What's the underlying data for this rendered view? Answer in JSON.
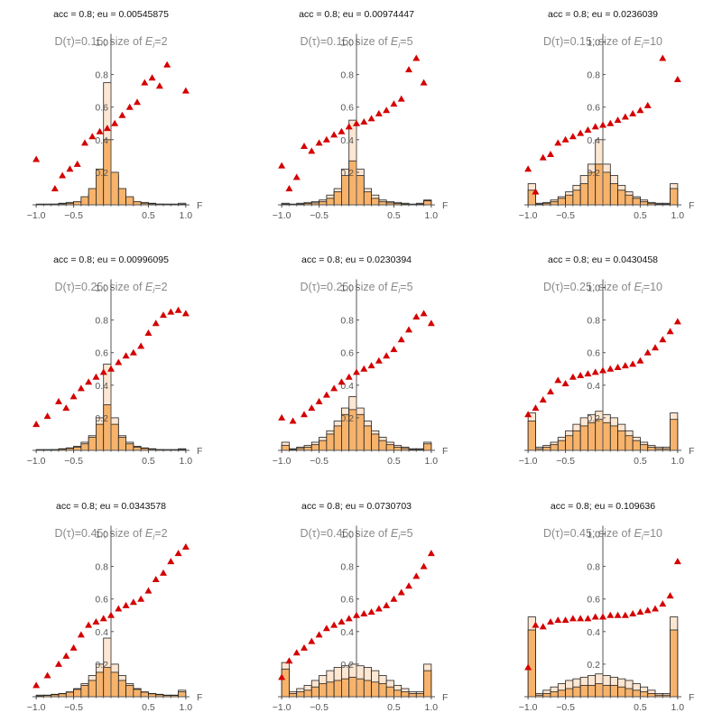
{
  "colors": {
    "light_bar": "#fde6d2",
    "dark_bar": "#f7b36b",
    "points": "#d40000",
    "axis": "#555555"
  },
  "chart_data": [
    {
      "type": "bar+scatter",
      "header": "acc = 0.8; eu = 0.00545875",
      "title_prefix": "D(τ)=0.15; size of ",
      "title_var": "E",
      "title_sub": "i",
      "title_suffix": "=2",
      "xlabel": "F",
      "xlim": [
        -1.05,
        1.05
      ],
      "ylim": [
        0,
        1.05
      ],
      "x_ticks": [
        "-1.0",
        "-0.5",
        "0.5",
        "1.0"
      ],
      "y_ticks": [
        "0.2",
        "0.4",
        "0.6",
        "0.8",
        "1.0"
      ],
      "bins": [
        -0.9,
        -0.8,
        -0.7,
        -0.6,
        -0.5,
        -0.4,
        -0.3,
        -0.2,
        -0.1,
        0.0,
        0.1,
        0.2,
        0.3,
        0.4,
        0.5,
        0.6,
        0.7,
        0.8,
        0.9,
        1.0
      ],
      "light": [
        0.005,
        0.005,
        0.005,
        0.01,
        0.015,
        0.02,
        0.04,
        0.07,
        0.18,
        0.75,
        0.18,
        0.07,
        0.04,
        0.02,
        0.015,
        0.01,
        0.005,
        0.005,
        0.005,
        0.01
      ],
      "dark": [
        0.002,
        0.002,
        0.004,
        0.006,
        0.01,
        0.02,
        0.05,
        0.1,
        0.22,
        0.4,
        0.2,
        0.1,
        0.05,
        0.02,
        0.01,
        0.006,
        0.004,
        0.002,
        0.002,
        0.004
      ],
      "points": {
        "x": [
          -1.0,
          -0.75,
          -0.65,
          -0.55,
          -0.45,
          -0.35,
          -0.25,
          -0.15,
          -0.05,
          0.05,
          0.15,
          0.25,
          0.35,
          0.45,
          0.55,
          0.65,
          0.75,
          1.0
        ],
        "y": [
          0.28,
          0.1,
          0.18,
          0.22,
          0.25,
          0.38,
          0.42,
          0.45,
          0.47,
          0.5,
          0.55,
          0.6,
          0.63,
          0.75,
          0.78,
          0.73,
          0.86,
          0.7
        ]
      }
    },
    {
      "type": "bar+scatter",
      "header": "acc = 0.8; eu = 0.00974447",
      "title_prefix": "D(τ)=0.15; size of ",
      "title_var": "E",
      "title_sub": "i",
      "title_suffix": "=5",
      "xlabel": "F",
      "xlim": [
        -1.05,
        1.05
      ],
      "ylim": [
        0,
        1.05
      ],
      "x_ticks": [
        "-1.0",
        "-0.5",
        "0.5",
        "1.0"
      ],
      "y_ticks": [
        "0.2",
        "0.4",
        "0.6",
        "0.8",
        "1.0"
      ],
      "bins": [
        -0.9,
        -0.8,
        -0.7,
        -0.6,
        -0.5,
        -0.4,
        -0.3,
        -0.2,
        -0.1,
        0.0,
        0.1,
        0.2,
        0.3,
        0.4,
        0.5,
        0.6,
        0.7,
        0.8,
        0.9,
        1.0
      ],
      "light": [
        0.01,
        0.005,
        0.01,
        0.015,
        0.02,
        0.03,
        0.06,
        0.1,
        0.22,
        0.52,
        0.22,
        0.1,
        0.06,
        0.03,
        0.02,
        0.015,
        0.01,
        0.005,
        0.01,
        0.03
      ],
      "dark": [
        0.005,
        0.003,
        0.005,
        0.008,
        0.012,
        0.02,
        0.04,
        0.08,
        0.18,
        0.27,
        0.18,
        0.08,
        0.04,
        0.02,
        0.012,
        0.008,
        0.005,
        0.003,
        0.005,
        0.025
      ],
      "points": {
        "x": [
          -1.0,
          -0.9,
          -0.8,
          -0.7,
          -0.6,
          -0.5,
          -0.4,
          -0.3,
          -0.2,
          -0.1,
          0.0,
          0.1,
          0.2,
          0.3,
          0.4,
          0.5,
          0.6,
          0.7,
          0.8,
          0.9
        ],
        "y": [
          0.24,
          0.1,
          0.17,
          0.36,
          0.33,
          0.38,
          0.4,
          0.43,
          0.45,
          0.48,
          0.5,
          0.51,
          0.53,
          0.56,
          0.58,
          0.62,
          0.65,
          0.83,
          0.9,
          0.75
        ]
      }
    },
    {
      "type": "bar+scatter",
      "header": "acc = 0.8; eu = 0.0236039",
      "title_prefix": "D(τ)=0.15; size of ",
      "title_var": "E",
      "title_sub": "i",
      "title_suffix": "=10",
      "xlabel": "F",
      "xlim": [
        -1.05,
        1.05
      ],
      "ylim": [
        0,
        1.05
      ],
      "x_ticks": [
        "-1.0",
        "-0.5",
        "0.5",
        "1.0"
      ],
      "y_ticks": [
        "0.2",
        "0.4",
        "0.6",
        "0.8",
        "1.0"
      ],
      "bins": [
        -0.9,
        -0.8,
        -0.7,
        -0.6,
        -0.5,
        -0.4,
        -0.3,
        -0.2,
        -0.1,
        0.0,
        0.1,
        0.2,
        0.3,
        0.4,
        0.5,
        0.6,
        0.7,
        0.8,
        0.9,
        1.0
      ],
      "light": [
        0.13,
        0.01,
        0.015,
        0.03,
        0.05,
        0.08,
        0.12,
        0.18,
        0.25,
        0.4,
        0.25,
        0.18,
        0.12,
        0.08,
        0.05,
        0.03,
        0.015,
        0.01,
        0.01,
        0.13
      ],
      "dark": [
        0.09,
        0.005,
        0.01,
        0.02,
        0.04,
        0.06,
        0.09,
        0.13,
        0.2,
        0.25,
        0.2,
        0.13,
        0.09,
        0.06,
        0.04,
        0.02,
        0.01,
        0.005,
        0.005,
        0.1
      ],
      "points": {
        "x": [
          -1.0,
          -0.9,
          -0.8,
          -0.7,
          -0.6,
          -0.5,
          -0.4,
          -0.3,
          -0.2,
          -0.1,
          0.0,
          0.1,
          0.2,
          0.3,
          0.4,
          0.5,
          0.6,
          0.8,
          1.0
        ],
        "y": [
          0.22,
          0.08,
          0.29,
          0.31,
          0.38,
          0.4,
          0.42,
          0.44,
          0.46,
          0.48,
          0.49,
          0.5,
          0.52,
          0.54,
          0.56,
          0.58,
          0.61,
          0.9,
          0.77
        ]
      }
    },
    {
      "type": "bar+scatter",
      "header": "acc = 0.8; eu = 0.00996095",
      "title_prefix": "D(τ)=0.25; size of ",
      "title_var": "E",
      "title_sub": "i",
      "title_suffix": "=2",
      "xlabel": "F",
      "xlim": [
        -1.05,
        1.05
      ],
      "ylim": [
        0,
        1.05
      ],
      "x_ticks": [
        "-1.0",
        "-0.5",
        "0.5",
        "1.0"
      ],
      "y_ticks": [
        "0.2",
        "0.4",
        "0.6",
        "0.8",
        "1.0"
      ],
      "bins": [
        -0.9,
        -0.8,
        -0.7,
        -0.6,
        -0.5,
        -0.4,
        -0.3,
        -0.2,
        -0.1,
        0.0,
        0.1,
        0.2,
        0.3,
        0.4,
        0.5,
        0.6,
        0.7,
        0.8,
        0.9,
        1.0
      ],
      "light": [
        0.005,
        0.005,
        0.005,
        0.01,
        0.015,
        0.025,
        0.05,
        0.09,
        0.2,
        0.53,
        0.2,
        0.09,
        0.05,
        0.025,
        0.015,
        0.01,
        0.005,
        0.005,
        0.005,
        0.01
      ],
      "dark": [
        0.003,
        0.003,
        0.004,
        0.007,
        0.012,
        0.02,
        0.04,
        0.08,
        0.16,
        0.28,
        0.16,
        0.08,
        0.04,
        0.02,
        0.012,
        0.007,
        0.004,
        0.003,
        0.003,
        0.005
      ],
      "points": {
        "x": [
          -1.0,
          -0.85,
          -0.7,
          -0.6,
          -0.5,
          -0.4,
          -0.3,
          -0.2,
          -0.1,
          0.0,
          0.1,
          0.2,
          0.3,
          0.4,
          0.5,
          0.6,
          0.7,
          0.8,
          0.9,
          1.0
        ],
        "y": [
          0.16,
          0.21,
          0.3,
          0.26,
          0.33,
          0.38,
          0.42,
          0.45,
          0.48,
          0.5,
          0.54,
          0.58,
          0.6,
          0.64,
          0.72,
          0.78,
          0.83,
          0.85,
          0.86,
          0.84
        ]
      }
    },
    {
      "type": "bar+scatter",
      "header": "acc = 0.8; eu = 0.0230394",
      "title_prefix": "D(τ)=0.25; size of ",
      "title_var": "E",
      "title_sub": "i",
      "title_suffix": "=5",
      "xlabel": "F",
      "xlim": [
        -1.05,
        1.05
      ],
      "ylim": [
        0,
        1.05
      ],
      "x_ticks": [
        "-1.0",
        "-0.5",
        "0.5",
        "1.0"
      ],
      "y_ticks": [
        "0.2",
        "0.4",
        "0.6",
        "0.8",
        "1.0"
      ],
      "bins": [
        -0.9,
        -0.8,
        -0.7,
        -0.6,
        -0.5,
        -0.4,
        -0.3,
        -0.2,
        -0.1,
        0.0,
        0.1,
        0.2,
        0.3,
        0.4,
        0.5,
        0.6,
        0.7,
        0.8,
        0.9,
        1.0
      ],
      "light": [
        0.05,
        0.01,
        0.02,
        0.03,
        0.05,
        0.08,
        0.12,
        0.18,
        0.26,
        0.33,
        0.26,
        0.18,
        0.12,
        0.08,
        0.05,
        0.03,
        0.02,
        0.01,
        0.01,
        0.05
      ],
      "dark": [
        0.03,
        0.005,
        0.012,
        0.02,
        0.035,
        0.06,
        0.1,
        0.15,
        0.22,
        0.25,
        0.22,
        0.15,
        0.1,
        0.06,
        0.035,
        0.02,
        0.012,
        0.005,
        0.005,
        0.04
      ],
      "points": {
        "x": [
          -1.0,
          -0.85,
          -0.7,
          -0.6,
          -0.5,
          -0.4,
          -0.3,
          -0.2,
          -0.1,
          0.0,
          0.1,
          0.2,
          0.3,
          0.4,
          0.5,
          0.6,
          0.7,
          0.8,
          0.9,
          1.0
        ],
        "y": [
          0.2,
          0.18,
          0.22,
          0.26,
          0.3,
          0.34,
          0.38,
          0.42,
          0.45,
          0.48,
          0.5,
          0.52,
          0.55,
          0.58,
          0.62,
          0.68,
          0.74,
          0.82,
          0.84,
          0.78
        ]
      }
    },
    {
      "type": "bar+scatter",
      "header": "acc = 0.8; eu = 0.0430458",
      "title_prefix": "D(τ)=0.25; size of ",
      "title_var": "E",
      "title_sub": "i",
      "title_suffix": "=10",
      "xlabel": "F",
      "xlim": [
        -1.05,
        1.05
      ],
      "ylim": [
        0,
        1.05
      ],
      "x_ticks": [
        "-1.0",
        "-0.5",
        "0.5",
        "1.0"
      ],
      "y_ticks": [
        "0.2",
        "0.4",
        "0.6",
        "0.8",
        "1.0"
      ],
      "bins": [
        -0.9,
        -0.8,
        -0.7,
        -0.6,
        -0.5,
        -0.4,
        -0.3,
        -0.2,
        -0.1,
        0.0,
        0.1,
        0.2,
        0.3,
        0.4,
        0.5,
        0.6,
        0.7,
        0.8,
        0.9,
        1.0
      ],
      "light": [
        0.23,
        0.02,
        0.03,
        0.05,
        0.08,
        0.12,
        0.16,
        0.2,
        0.22,
        0.24,
        0.22,
        0.2,
        0.16,
        0.12,
        0.08,
        0.05,
        0.03,
        0.02,
        0.02,
        0.23
      ],
      "dark": [
        0.18,
        0.01,
        0.02,
        0.035,
        0.06,
        0.09,
        0.12,
        0.15,
        0.17,
        0.19,
        0.17,
        0.15,
        0.12,
        0.09,
        0.06,
        0.035,
        0.02,
        0.01,
        0.01,
        0.19
      ],
      "points": {
        "x": [
          -1.0,
          -0.9,
          -0.8,
          -0.7,
          -0.6,
          -0.5,
          -0.4,
          -0.3,
          -0.2,
          -0.1,
          0.0,
          0.1,
          0.2,
          0.3,
          0.4,
          0.5,
          0.6,
          0.7,
          0.8,
          0.9,
          1.0
        ],
        "y": [
          0.22,
          0.26,
          0.31,
          0.36,
          0.43,
          0.41,
          0.45,
          0.46,
          0.47,
          0.48,
          0.49,
          0.5,
          0.51,
          0.52,
          0.53,
          0.55,
          0.6,
          0.63,
          0.68,
          0.73,
          0.79
        ]
      }
    },
    {
      "type": "bar+scatter",
      "header": "acc = 0.8; eu = 0.0343578",
      "title_prefix": "D(τ)=0.45; size of ",
      "title_var": "E",
      "title_sub": "i",
      "title_suffix": "=2",
      "xlabel": "F",
      "xlim": [
        -1.05,
        1.05
      ],
      "ylim": [
        0,
        1.05
      ],
      "x_ticks": [
        "-1.0",
        "-0.5",
        "0.5",
        "1.0"
      ],
      "y_ticks": [
        "0.2",
        "0.4",
        "0.6",
        "0.8",
        "1.0"
      ],
      "bins": [
        -0.9,
        -0.8,
        -0.7,
        -0.6,
        -0.5,
        -0.4,
        -0.3,
        -0.2,
        -0.1,
        0.0,
        0.1,
        0.2,
        0.3,
        0.4,
        0.5,
        0.6,
        0.7,
        0.8,
        0.9,
        1.0
      ],
      "light": [
        0.01,
        0.01,
        0.015,
        0.02,
        0.03,
        0.05,
        0.08,
        0.13,
        0.2,
        0.36,
        0.2,
        0.13,
        0.08,
        0.05,
        0.03,
        0.02,
        0.015,
        0.01,
        0.01,
        0.04
      ],
      "dark": [
        0.005,
        0.008,
        0.012,
        0.018,
        0.028,
        0.045,
        0.07,
        0.1,
        0.15,
        0.18,
        0.15,
        0.1,
        0.07,
        0.045,
        0.028,
        0.018,
        0.012,
        0.008,
        0.008,
        0.03
      ],
      "points": {
        "x": [
          -1.0,
          -0.85,
          -0.7,
          -0.6,
          -0.5,
          -0.4,
          -0.3,
          -0.2,
          -0.1,
          0.0,
          0.1,
          0.2,
          0.3,
          0.4,
          0.5,
          0.6,
          0.7,
          0.8,
          0.9,
          1.0
        ],
        "y": [
          0.07,
          0.13,
          0.2,
          0.25,
          0.3,
          0.38,
          0.44,
          0.46,
          0.48,
          0.5,
          0.54,
          0.56,
          0.58,
          0.6,
          0.65,
          0.72,
          0.76,
          0.83,
          0.88,
          0.92
        ]
      }
    },
    {
      "type": "bar+scatter",
      "header": "acc = 0.8; eu = 0.0730703",
      "title_prefix": "D(τ)=0.45; size of ",
      "title_var": "E",
      "title_sub": "i",
      "title_suffix": "=5",
      "xlabel": "F",
      "xlim": [
        -1.05,
        1.05
      ],
      "ylim": [
        0,
        1.05
      ],
      "x_ticks": [
        "-1.0",
        "-0.5",
        "0.5",
        "1.0"
      ],
      "y_ticks": [
        "0.2",
        "0.4",
        "0.6",
        "0.8",
        "1.0"
      ],
      "bins": [
        -0.9,
        -0.8,
        -0.7,
        -0.6,
        -0.5,
        -0.4,
        -0.3,
        -0.2,
        -0.1,
        0.0,
        0.1,
        0.2,
        0.3,
        0.4,
        0.5,
        0.6,
        0.7,
        0.8,
        0.9,
        1.0
      ],
      "light": [
        0.21,
        0.03,
        0.05,
        0.07,
        0.1,
        0.13,
        0.16,
        0.18,
        0.19,
        0.2,
        0.19,
        0.18,
        0.16,
        0.13,
        0.1,
        0.07,
        0.05,
        0.03,
        0.03,
        0.2
      ],
      "dark": [
        0.17,
        0.02,
        0.03,
        0.04,
        0.06,
        0.08,
        0.09,
        0.1,
        0.11,
        0.12,
        0.11,
        0.1,
        0.09,
        0.08,
        0.06,
        0.04,
        0.03,
        0.02,
        0.02,
        0.16
      ],
      "points": {
        "x": [
          -1.0,
          -0.9,
          -0.8,
          -0.7,
          -0.6,
          -0.5,
          -0.4,
          -0.3,
          -0.2,
          -0.1,
          0.0,
          0.1,
          0.2,
          0.3,
          0.4,
          0.5,
          0.6,
          0.7,
          0.8,
          0.9,
          1.0
        ],
        "y": [
          0.12,
          0.22,
          0.27,
          0.3,
          0.34,
          0.38,
          0.42,
          0.44,
          0.46,
          0.48,
          0.5,
          0.51,
          0.52,
          0.54,
          0.56,
          0.6,
          0.64,
          0.68,
          0.74,
          0.8,
          0.88
        ]
      }
    },
    {
      "type": "bar+scatter",
      "header": "acc = 0.8; eu = 0.109636",
      "title_prefix": "D(τ)=0.45; size of ",
      "title_var": "E",
      "title_sub": "i",
      "title_suffix": "=10",
      "xlabel": "F",
      "xlim": [
        -1.05,
        1.05
      ],
      "ylim": [
        0,
        1.05
      ],
      "x_ticks": [
        "-1.0",
        "-0.5",
        "0.5",
        "1.0"
      ],
      "y_ticks": [
        "0.2",
        "0.4",
        "0.6",
        "0.8",
        "1.0"
      ],
      "bins": [
        -0.9,
        -0.8,
        -0.7,
        -0.6,
        -0.5,
        -0.4,
        -0.3,
        -0.2,
        -0.1,
        0.0,
        0.1,
        0.2,
        0.3,
        0.4,
        0.5,
        0.6,
        0.7,
        0.8,
        0.9,
        1.0
      ],
      "light": [
        0.49,
        0.02,
        0.04,
        0.06,
        0.08,
        0.1,
        0.11,
        0.12,
        0.13,
        0.14,
        0.13,
        0.12,
        0.11,
        0.1,
        0.08,
        0.06,
        0.04,
        0.02,
        0.02,
        0.49
      ],
      "dark": [
        0.41,
        0.01,
        0.02,
        0.03,
        0.04,
        0.05,
        0.06,
        0.07,
        0.07,
        0.08,
        0.07,
        0.07,
        0.06,
        0.05,
        0.04,
        0.03,
        0.02,
        0.01,
        0.01,
        0.41
      ],
      "points": {
        "x": [
          -1.0,
          -0.9,
          -0.8,
          -0.7,
          -0.6,
          -0.5,
          -0.4,
          -0.3,
          -0.2,
          -0.1,
          0.0,
          0.1,
          0.2,
          0.3,
          0.4,
          0.5,
          0.6,
          0.7,
          0.8,
          0.9,
          1.0
        ],
        "y": [
          0.18,
          0.44,
          0.43,
          0.46,
          0.47,
          0.47,
          0.48,
          0.48,
          0.48,
          0.49,
          0.49,
          0.5,
          0.5,
          0.5,
          0.51,
          0.52,
          0.53,
          0.54,
          0.57,
          0.62,
          0.83
        ]
      }
    }
  ]
}
